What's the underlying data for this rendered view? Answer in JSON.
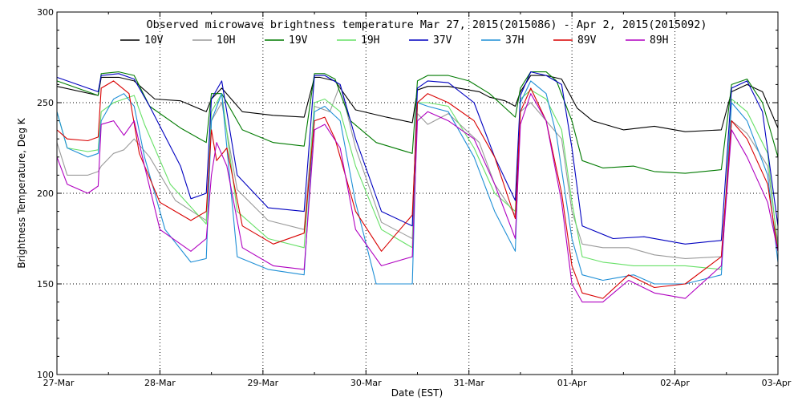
{
  "chart_data": {
    "type": "line",
    "title": "Observed microwave brightness temperature Mar 27, 2015(2015086) - Apr  2, 2015(2015092)",
    "xlabel": "Date (EST)",
    "ylabel": "Brightness Temperature, Deg K",
    "xlim": [
      0,
      7
    ],
    "ylim": [
      100,
      300
    ],
    "x_ticks": [
      0,
      1,
      2,
      3,
      4,
      5,
      6,
      7
    ],
    "x_tick_labels": [
      "27-Mar",
      "28-Mar",
      "29-Mar",
      "30-Mar",
      "31-Mar",
      "01-Apr",
      "02-Apr",
      "03-Apr"
    ],
    "y_ticks": [
      100,
      150,
      200,
      250,
      300
    ],
    "y_tick_labels": [
      "100",
      "150",
      "200",
      "250",
      "300"
    ],
    "grid": "dotted",
    "legend_position": "top",
    "series": [
      {
        "name": "10V",
        "color": "#000000",
        "x": [
          0,
          0.4,
          0.43,
          0.6,
          0.75,
          0.95,
          1.2,
          1.45,
          1.5,
          1.6,
          1.8,
          2.1,
          2.4,
          2.5,
          2.55,
          2.7,
          2.9,
          3.2,
          3.45,
          3.5,
          3.6,
          3.8,
          4.1,
          4.2,
          4.35,
          4.45,
          4.5,
          4.6,
          4.75,
          4.9,
          5.05,
          5.2,
          5.5,
          5.8,
          6.1,
          6.45,
          6.55,
          6.7,
          6.85,
          7.0
        ],
        "y": [
          259,
          254,
          264,
          264,
          262,
          252,
          251,
          245,
          252,
          258,
          245,
          243,
          242,
          264,
          264,
          262,
          246,
          242,
          239,
          257,
          259,
          259,
          256,
          253,
          251,
          248,
          256,
          265,
          265,
          263,
          247,
          240,
          235,
          237,
          234,
          235,
          256,
          260,
          256,
          236
        ]
      },
      {
        "name": "10H",
        "color": "#9a9a9a",
        "x": [
          0,
          0.1,
          0.3,
          0.4,
          0.43,
          0.55,
          0.65,
          0.75,
          0.9,
          1.15,
          1.45,
          1.5,
          1.6,
          1.75,
          2.05,
          2.4,
          2.5,
          2.65,
          2.75,
          2.9,
          3.15,
          3.45,
          3.5,
          3.6,
          3.8,
          4.1,
          4.25,
          4.45,
          4.5,
          4.6,
          4.75,
          4.9,
          5.0,
          5.1,
          5.3,
          5.55,
          5.8,
          6.1,
          6.45,
          6.55,
          6.7,
          6.9,
          7.0
        ],
        "y": [
          228,
          210,
          210,
          212,
          215,
          222,
          224,
          230,
          220,
          196,
          185,
          240,
          250,
          202,
          185,
          180,
          248,
          245,
          260,
          225,
          184,
          175,
          244,
          238,
          244,
          228,
          205,
          188,
          245,
          250,
          240,
          230,
          190,
          172,
          170,
          170,
          166,
          164,
          165,
          240,
          233,
          215,
          172
        ]
      },
      {
        "name": "19V",
        "color": "#007a00",
        "x": [
          0,
          0.4,
          0.43,
          0.6,
          0.75,
          0.9,
          1.2,
          1.45,
          1.5,
          1.6,
          1.8,
          2.1,
          2.4,
          2.5,
          2.6,
          2.7,
          2.85,
          3.1,
          3.45,
          3.5,
          3.6,
          3.8,
          4.0,
          4.2,
          4.45,
          4.5,
          4.6,
          4.75,
          4.85,
          5.0,
          5.1,
          5.3,
          5.6,
          5.8,
          6.1,
          6.45,
          6.55,
          6.7,
          6.85,
          7.0
        ],
        "y": [
          262,
          254,
          266,
          267,
          265,
          248,
          236,
          228,
          255,
          255,
          235,
          228,
          226,
          266,
          266,
          263,
          240,
          228,
          222,
          262,
          265,
          265,
          262,
          255,
          242,
          258,
          267,
          267,
          262,
          240,
          218,
          214,
          215,
          212,
          211,
          213,
          260,
          263,
          250,
          220
        ]
      },
      {
        "name": "19H",
        "color": "#66e066",
        "x": [
          0,
          0.1,
          0.3,
          0.4,
          0.43,
          0.55,
          0.65,
          0.75,
          0.85,
          1.1,
          1.45,
          1.5,
          1.6,
          1.75,
          2.05,
          2.4,
          2.5,
          2.6,
          2.75,
          2.9,
          3.15,
          3.45,
          3.5,
          3.6,
          3.8,
          4.05,
          4.25,
          4.45,
          4.5,
          4.6,
          4.75,
          4.9,
          5.0,
          5.1,
          5.3,
          5.6,
          6.1,
          6.45,
          6.55,
          6.7,
          6.9,
          7.0
        ],
        "y": [
          245,
          225,
          223,
          224,
          245,
          250,
          252,
          254,
          238,
          205,
          183,
          245,
          255,
          190,
          175,
          170,
          250,
          252,
          245,
          215,
          180,
          170,
          250,
          250,
          248,
          225,
          200,
          190,
          252,
          257,
          252,
          235,
          195,
          165,
          162,
          160,
          160,
          158,
          252,
          245,
          222,
          168
        ]
      },
      {
        "name": "37V",
        "color": "#0000c0",
        "x": [
          0,
          0.4,
          0.43,
          0.6,
          0.75,
          0.9,
          1.2,
          1.3,
          1.45,
          1.5,
          1.6,
          1.75,
          2.05,
          2.4,
          2.5,
          2.6,
          2.75,
          2.9,
          3.15,
          3.45,
          3.5,
          3.6,
          3.8,
          4.05,
          4.25,
          4.45,
          4.5,
          4.6,
          4.75,
          4.9,
          5.0,
          5.1,
          5.4,
          5.7,
          6.1,
          6.45,
          6.55,
          6.7,
          6.85,
          7.0
        ],
        "y": [
          264,
          256,
          265,
          266,
          263,
          248,
          215,
          197,
          200,
          252,
          262,
          210,
          192,
          190,
          265,
          265,
          260,
          230,
          190,
          182,
          258,
          262,
          261,
          250,
          220,
          196,
          254,
          267,
          265,
          260,
          225,
          182,
          175,
          176,
          172,
          174,
          258,
          262,
          245,
          182
        ]
      },
      {
        "name": "37H",
        "color": "#1f8fd6",
        "x": [
          0,
          0.1,
          0.3,
          0.4,
          0.43,
          0.55,
          0.65,
          0.75,
          0.85,
          1.05,
          1.3,
          1.45,
          1.5,
          1.6,
          1.75,
          2.05,
          2.4,
          2.5,
          2.6,
          2.75,
          2.9,
          3.1,
          3.45,
          3.5,
          3.6,
          3.8,
          4.05,
          4.25,
          4.45,
          4.5,
          4.6,
          4.75,
          4.85,
          5.0,
          5.1,
          5.3,
          5.6,
          5.8,
          6.1,
          6.45,
          6.55,
          6.7,
          6.9,
          7.0
        ],
        "y": [
          245,
          225,
          220,
          222,
          240,
          252,
          255,
          248,
          220,
          180,
          162,
          164,
          240,
          255,
          165,
          158,
          155,
          245,
          248,
          240,
          195,
          150,
          150,
          250,
          248,
          245,
          220,
          190,
          168,
          250,
          262,
          255,
          232,
          175,
          155,
          152,
          155,
          150,
          150,
          155,
          250,
          240,
          210,
          162
        ]
      },
      {
        "name": "89V",
        "color": "#d80000",
        "x": [
          0,
          0.1,
          0.3,
          0.4,
          0.43,
          0.55,
          0.7,
          0.8,
          1.0,
          1.3,
          1.45,
          1.5,
          1.55,
          1.65,
          1.8,
          2.1,
          2.4,
          2.5,
          2.6,
          2.7,
          2.9,
          3.15,
          3.45,
          3.5,
          3.6,
          3.8,
          4.05,
          4.25,
          4.45,
          4.5,
          4.6,
          4.75,
          4.9,
          5.0,
          5.1,
          5.3,
          5.55,
          5.8,
          6.1,
          6.45,
          6.55,
          6.7,
          6.9,
          7.0
        ],
        "y": [
          235,
          230,
          229,
          231,
          258,
          262,
          255,
          222,
          195,
          185,
          190,
          235,
          218,
          225,
          182,
          172,
          178,
          240,
          242,
          230,
          190,
          168,
          188,
          250,
          255,
          250,
          240,
          220,
          186,
          245,
          258,
          240,
          200,
          160,
          145,
          142,
          155,
          148,
          150,
          165,
          240,
          230,
          205,
          168
        ]
      },
      {
        "name": "89H",
        "color": "#b000c0",
        "x": [
          0,
          0.1,
          0.3,
          0.4,
          0.43,
          0.55,
          0.65,
          0.75,
          0.85,
          1.0,
          1.3,
          1.45,
          1.5,
          1.55,
          1.65,
          1.8,
          2.1,
          2.4,
          2.5,
          2.6,
          2.75,
          2.9,
          3.15,
          3.45,
          3.5,
          3.6,
          3.8,
          4.05,
          4.25,
          4.45,
          4.5,
          4.6,
          4.75,
          4.9,
          5.0,
          5.1,
          5.3,
          5.55,
          5.8,
          6.1,
          6.45,
          6.55,
          6.7,
          6.9,
          7.0
        ],
        "y": [
          220,
          205,
          200,
          204,
          238,
          240,
          232,
          240,
          215,
          180,
          168,
          175,
          210,
          228,
          215,
          170,
          160,
          158,
          235,
          238,
          225,
          180,
          160,
          165,
          240,
          245,
          240,
          230,
          205,
          175,
          238,
          255,
          240,
          195,
          150,
          140,
          140,
          152,
          145,
          142,
          160,
          235,
          220,
          195,
          168
        ]
      }
    ]
  }
}
